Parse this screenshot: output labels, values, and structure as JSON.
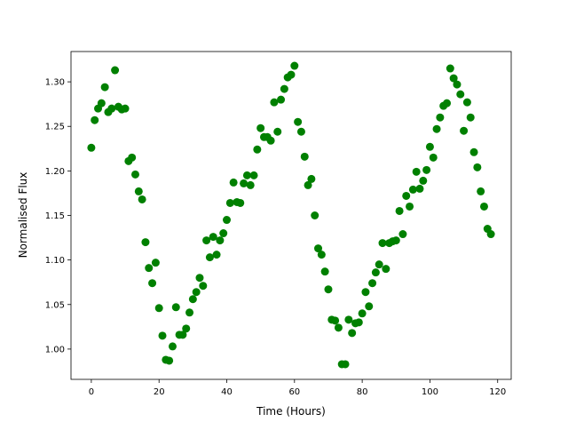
{
  "chart_data": {
    "type": "scatter",
    "xlabel": "Time (Hours)",
    "ylabel": "Normalised Flux",
    "xlim": [
      -6,
      124
    ],
    "ylim": [
      0.966,
      1.334
    ],
    "xticks": [
      "0",
      "20",
      "40",
      "60",
      "80",
      "100",
      "120"
    ],
    "yticks": [
      "1.00",
      "1.05",
      "1.10",
      "1.15",
      "1.20",
      "1.25",
      "1.30"
    ],
    "grid": false,
    "marker_color": "#008000",
    "x": [
      0,
      1,
      2,
      3,
      4,
      5,
      6,
      7,
      8,
      9,
      10,
      11,
      12,
      13,
      14,
      15,
      16,
      17,
      18,
      19,
      20,
      21,
      22,
      23,
      24,
      25,
      26,
      27,
      28,
      29,
      30,
      31,
      32,
      33,
      34,
      35,
      36,
      37,
      38,
      39,
      40,
      41,
      42,
      43,
      44,
      45,
      46,
      47,
      48,
      49,
      50,
      51,
      52,
      53,
      54,
      55,
      56,
      57,
      58,
      59,
      60,
      61,
      62,
      63,
      64,
      65,
      66,
      67,
      68,
      69,
      70,
      71,
      72,
      73,
      74,
      75,
      76,
      77,
      78,
      79,
      80,
      81,
      82,
      83,
      84,
      85,
      86,
      87,
      88,
      89,
      90,
      91,
      92,
      93,
      94,
      95,
      96,
      97,
      98,
      99,
      100,
      101,
      102,
      103,
      104,
      105,
      106,
      107,
      108,
      109,
      110,
      111,
      112,
      113,
      114,
      115,
      116,
      117,
      118
    ],
    "y": [
      1.226,
      1.257,
      1.27,
      1.276,
      1.294,
      1.266,
      1.27,
      1.313,
      1.272,
      1.269,
      1.27,
      1.211,
      1.215,
      1.196,
      1.177,
      1.168,
      1.12,
      1.091,
      1.074,
      1.097,
      1.046,
      1.015,
      0.988,
      0.987,
      1.003,
      1.047,
      1.016,
      1.016,
      1.023,
      1.041,
      1.056,
      1.064,
      1.08,
      1.071,
      1.122,
      1.103,
      1.126,
      1.106,
      1.122,
      1.13,
      1.145,
      1.164,
      1.187,
      1.165,
      1.164,
      1.186,
      1.195,
      1.184,
      1.195,
      1.224,
      1.248,
      1.238,
      1.238,
      1.234,
      1.277,
      1.244,
      1.28,
      1.292,
      1.305,
      1.308,
      1.318,
      1.255,
      1.244,
      1.216,
      1.184,
      1.191,
      1.15,
      1.113,
      1.106,
      1.087,
      1.067,
      1.033,
      1.032,
      1.024,
      0.983,
      0.983,
      1.033,
      1.018,
      1.029,
      1.03,
      1.04,
      1.064,
      1.048,
      1.074,
      1.086,
      1.095,
      1.119,
      1.09,
      1.119,
      1.121,
      1.122,
      1.155,
      1.129,
      1.172,
      1.16,
      1.179,
      1.199,
      1.18,
      1.189,
      1.201,
      1.227,
      1.215,
      1.247,
      1.26,
      1.273,
      1.276,
      1.315,
      1.304,
      1.297,
      1.286,
      1.245,
      1.277,
      1.26,
      1.221,
      1.204,
      1.177,
      1.16,
      1.135,
      1.129
    ]
  }
}
